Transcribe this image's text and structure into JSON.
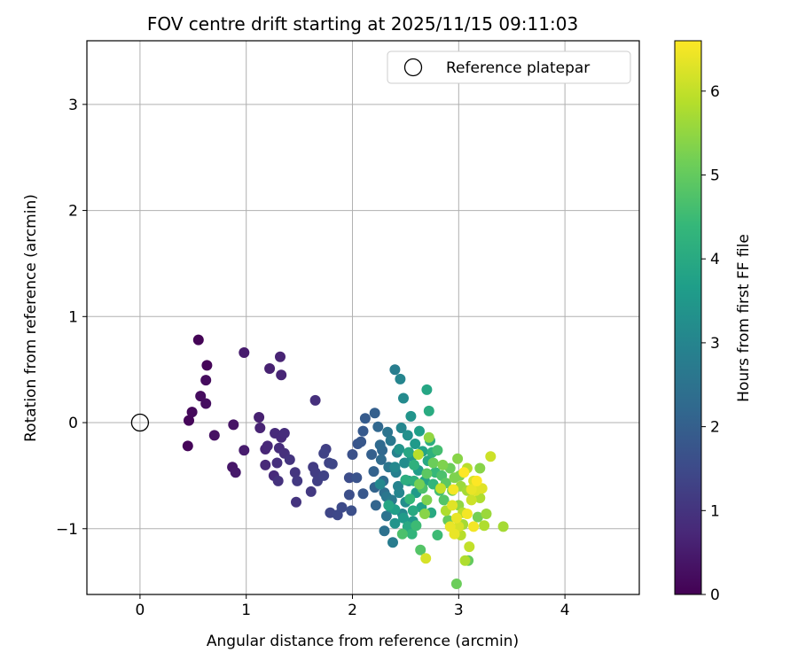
{
  "chart_data": {
    "type": "scatter",
    "title": "FOV centre drift starting at 2025/11/15 09:11:03",
    "xlabel": "Angular distance from reference (arcmin)",
    "ylabel": "Rotation from reference (arcmin)",
    "xlim": [
      -0.5,
      4.7
    ],
    "ylim": [
      -1.62,
      3.6
    ],
    "xticks": [
      0,
      1,
      2,
      3,
      4
    ],
    "yticks": [
      -1,
      0,
      1,
      2,
      3
    ],
    "xtick_labels": [
      "0",
      "1",
      "2",
      "3",
      "4"
    ],
    "ytick_labels": [
      "−1",
      "0",
      "1",
      "2",
      "3"
    ],
    "grid": true,
    "legend": {
      "placement": "top-right",
      "label": "Reference platepar"
    },
    "reference_point": {
      "x": 0,
      "y": 0
    },
    "colorbar": {
      "label": "Hours from first FF file",
      "range": [
        0,
        6.6
      ],
      "ticks": [
        0,
        1,
        2,
        3,
        4,
        5,
        6
      ],
      "tick_labels": [
        "0",
        "1",
        "2",
        "3",
        "4",
        "5",
        "6"
      ],
      "colormap": "viridis",
      "colormap_stops": [
        "#440154",
        "#482878",
        "#3e4989",
        "#31688e",
        "#26828e",
        "#1f9e89",
        "#35b779",
        "#6ece58",
        "#b5de2b",
        "#fde725"
      ]
    },
    "series": [
      {
        "points": [
          [
            0.55,
            0.78,
            0.05
          ],
          [
            0.63,
            0.54,
            0.1
          ],
          [
            0.46,
            0.02,
            0.1
          ],
          [
            0.49,
            0.1,
            0.15
          ],
          [
            0.57,
            0.25,
            0.2
          ],
          [
            0.62,
            0.18,
            0.25
          ],
          [
            0.62,
            0.4,
            0.2
          ],
          [
            0.45,
            -0.22,
            0.1
          ],
          [
            0.7,
            -0.12,
            0.3
          ],
          [
            0.88,
            -0.02,
            0.35
          ],
          [
            0.87,
            -0.42,
            0.4
          ],
          [
            0.9,
            -0.47,
            0.45
          ],
          [
            0.98,
            0.66,
            0.5
          ],
          [
            0.98,
            -0.26,
            0.5
          ],
          [
            1.12,
            0.05,
            0.6
          ],
          [
            1.13,
            -0.05,
            0.65
          ],
          [
            1.22,
            0.51,
            0.6
          ],
          [
            1.32,
            0.62,
            0.65
          ],
          [
            1.33,
            0.45,
            0.7
          ],
          [
            1.18,
            -0.25,
            0.7
          ],
          [
            1.2,
            -0.22,
            0.75
          ],
          [
            1.27,
            -0.1,
            0.8
          ],
          [
            1.33,
            -0.14,
            0.8
          ],
          [
            1.36,
            -0.1,
            0.85
          ],
          [
            1.31,
            -0.24,
            0.85
          ],
          [
            1.36,
            -0.29,
            0.9
          ],
          [
            1.18,
            -0.4,
            0.75
          ],
          [
            1.26,
            -0.5,
            0.8
          ],
          [
            1.29,
            -0.38,
            0.9
          ],
          [
            1.3,
            -0.55,
            0.95
          ],
          [
            1.41,
            -0.35,
            1.0
          ],
          [
            1.46,
            -0.47,
            1.05
          ],
          [
            1.48,
            -0.55,
            1.1
          ],
          [
            1.47,
            -0.75,
            1.0
          ],
          [
            1.65,
            0.21,
            0.9
          ],
          [
            1.61,
            -0.65,
            1.1
          ],
          [
            1.63,
            -0.42,
            1.15
          ],
          [
            1.65,
            -0.47,
            1.2
          ],
          [
            1.67,
            -0.55,
            1.25
          ],
          [
            1.73,
            -0.5,
            1.3
          ],
          [
            1.75,
            -0.25,
            1.25
          ],
          [
            1.73,
            -0.29,
            1.3
          ],
          [
            1.78,
            -0.38,
            1.35
          ],
          [
            1.81,
            -0.39,
            1.4
          ],
          [
            1.79,
            -0.85,
            1.4
          ],
          [
            1.86,
            -0.87,
            1.45
          ],
          [
            1.9,
            -0.8,
            1.5
          ],
          [
            1.97,
            -0.52,
            1.55
          ],
          [
            1.97,
            -0.68,
            1.6
          ],
          [
            1.99,
            -0.83,
            1.6
          ],
          [
            2.0,
            -0.3,
            1.65
          ],
          [
            2.04,
            -0.52,
            1.7
          ],
          [
            2.05,
            -0.2,
            1.75
          ],
          [
            2.08,
            -0.18,
            1.8
          ],
          [
            2.1,
            -0.08,
            1.85
          ],
          [
            2.1,
            -0.67,
            1.8
          ],
          [
            2.12,
            0.04,
            1.9
          ],
          [
            2.18,
            -0.3,
            2.0
          ],
          [
            2.2,
            -0.46,
            2.05
          ],
          [
            2.21,
            -0.61,
            2.1
          ],
          [
            2.21,
            0.09,
            2.0
          ],
          [
            2.22,
            -0.78,
            2.15
          ],
          [
            2.24,
            -0.04,
            2.2
          ],
          [
            2.26,
            -0.21,
            2.25
          ],
          [
            2.27,
            -0.35,
            2.3
          ],
          [
            2.29,
            -0.55,
            2.35
          ],
          [
            2.3,
            -0.66,
            2.4
          ],
          [
            2.3,
            -1.02,
            2.45
          ],
          [
            2.32,
            -0.88,
            2.5
          ],
          [
            2.33,
            -0.09,
            2.55
          ],
          [
            2.34,
            -0.42,
            2.6
          ],
          [
            2.36,
            -0.17,
            2.65
          ],
          [
            2.37,
            -0.73,
            2.7
          ],
          [
            2.38,
            -1.13,
            2.75
          ],
          [
            2.4,
            0.5,
            2.8
          ],
          [
            2.41,
            -0.47,
            2.85
          ],
          [
            2.42,
            -0.28,
            2.9
          ],
          [
            2.43,
            -0.6,
            2.95
          ],
          [
            2.45,
            0.41,
            3.0
          ],
          [
            2.46,
            -0.05,
            3.05
          ],
          [
            2.47,
            -0.86,
            3.1
          ],
          [
            2.48,
            0.23,
            3.15
          ],
          [
            2.49,
            -0.38,
            3.2
          ],
          [
            2.5,
            -0.75,
            3.25
          ],
          [
            2.52,
            -0.12,
            3.3
          ],
          [
            2.53,
            -0.55,
            3.35
          ],
          [
            2.55,
            0.06,
            3.4
          ],
          [
            2.56,
            -0.32,
            3.45
          ],
          [
            2.57,
            -0.93,
            3.5
          ],
          [
            2.59,
            -0.2,
            3.55
          ],
          [
            2.6,
            -0.66,
            3.6
          ],
          [
            2.62,
            -0.45,
            3.65
          ],
          [
            2.63,
            -0.08,
            3.7
          ],
          [
            2.65,
            -0.8,
            3.75
          ],
          [
            2.66,
            -0.27,
            3.8
          ],
          [
            2.68,
            -0.55,
            3.85
          ],
          [
            2.7,
            0.31,
            3.9
          ],
          [
            2.71,
            -0.36,
            3.95
          ],
          [
            2.72,
            0.11,
            4.05
          ],
          [
            2.73,
            -0.17,
            4.1
          ],
          [
            2.74,
            -0.85,
            4.0
          ],
          [
            2.75,
            -0.28,
            4.2
          ],
          [
            2.76,
            -0.58,
            4.3
          ],
          [
            2.78,
            -0.47,
            4.4
          ],
          [
            2.8,
            -1.06,
            4.5
          ],
          [
            2.82,
            -0.64,
            4.6
          ],
          [
            2.84,
            -0.5,
            4.7
          ],
          [
            2.86,
            -0.73,
            4.8
          ],
          [
            2.88,
            -0.57,
            4.9
          ],
          [
            2.9,
            -0.92,
            5.0
          ],
          [
            2.92,
            -0.43,
            5.1
          ],
          [
            2.94,
            -0.64,
            5.2
          ],
          [
            2.96,
            -0.52,
            5.3
          ],
          [
            2.98,
            -1.52,
            5.1
          ],
          [
            2.99,
            -0.34,
            5.4
          ],
          [
            3.0,
            -0.78,
            5.5
          ],
          [
            3.02,
            -0.6,
            5.6
          ],
          [
            3.04,
            -0.96,
            5.7
          ],
          [
            3.06,
            -1.3,
            5.8
          ],
          [
            3.08,
            -0.43,
            5.9
          ],
          [
            3.1,
            -1.17,
            6.0
          ],
          [
            3.12,
            -0.73,
            6.1
          ],
          [
            3.14,
            -0.55,
            6.2
          ],
          [
            3.16,
            -0.64,
            6.3
          ],
          [
            3.18,
            -0.89,
            5.2
          ],
          [
            3.2,
            -0.43,
            5.4
          ],
          [
            3.22,
            -0.62,
            6.3
          ],
          [
            3.24,
            -0.97,
            5.8
          ],
          [
            3.26,
            -0.86,
            5.6
          ],
          [
            3.3,
            -0.32,
            6.1
          ],
          [
            3.42,
            -0.98,
            5.7
          ],
          [
            2.32,
            -0.7,
            2.6
          ],
          [
            2.36,
            -0.8,
            3.2
          ],
          [
            2.4,
            -0.95,
            3.4
          ],
          [
            2.44,
            -0.66,
            3.0
          ],
          [
            2.48,
            -0.9,
            3.6
          ],
          [
            2.52,
            -0.98,
            4.0
          ],
          [
            2.56,
            -1.05,
            4.3
          ],
          [
            2.6,
            -0.97,
            4.5
          ],
          [
            2.64,
            -1.2,
            4.8
          ],
          [
            2.69,
            -1.28,
            6.2
          ],
          [
            2.47,
            -1.05,
            4.7
          ],
          [
            2.34,
            -0.78,
            3.9
          ],
          [
            2.4,
            -0.82,
            3.7
          ],
          [
            2.44,
            -0.25,
            3.4
          ],
          [
            2.5,
            -0.54,
            4.1
          ],
          [
            2.53,
            -0.28,
            3.9
          ],
          [
            2.58,
            -0.4,
            4.2
          ],
          [
            2.62,
            -0.3,
            5.9
          ],
          [
            2.63,
            -0.58,
            5.2
          ],
          [
            2.66,
            -0.62,
            4.7
          ],
          [
            2.7,
            -0.48,
            4.9
          ],
          [
            2.7,
            -0.73,
            5.3
          ],
          [
            2.72,
            -0.14,
            5.5
          ],
          [
            2.76,
            -0.38,
            5.1
          ],
          [
            2.8,
            -0.26,
            4.6
          ],
          [
            2.83,
            -0.62,
            6.0
          ],
          [
            2.88,
            -0.83,
            5.8
          ],
          [
            2.92,
            -0.98,
            6.4
          ],
          [
            2.95,
            -0.63,
            6.5
          ],
          [
            2.98,
            -0.9,
            6.4
          ],
          [
            3.01,
            -0.5,
            5.3
          ],
          [
            3.05,
            -0.47,
            6.6
          ],
          [
            3.08,
            -0.86,
            6.5
          ],
          [
            3.12,
            -0.63,
            6.4
          ],
          [
            3.14,
            -0.98,
            6.5
          ],
          [
            3.17,
            -0.55,
            6.6
          ],
          [
            3.0,
            -0.98,
            6.2
          ],
          [
            3.02,
            -1.06,
            5.9
          ],
          [
            3.08,
            -0.64,
            5.7
          ],
          [
            3.09,
            -1.3,
            5.0
          ],
          [
            2.96,
            -1.05,
            6.4
          ],
          [
            2.94,
            -0.78,
            6.3
          ],
          [
            2.57,
            -0.83,
            4.0
          ],
          [
            2.28,
            -0.26,
            2.2
          ],
          [
            2.26,
            -0.58,
            3.1
          ],
          [
            2.4,
            -0.42,
            3.1
          ],
          [
            2.54,
            -0.72,
            4.4
          ],
          [
            2.58,
            -0.55,
            4.2
          ],
          [
            2.85,
            -0.4,
            5.3
          ],
          [
            2.68,
            -0.86,
            5.4
          ],
          [
            3.04,
            -0.85,
            5.9
          ],
          [
            3.2,
            -0.71,
            5.8
          ]
        ]
      }
    ]
  }
}
